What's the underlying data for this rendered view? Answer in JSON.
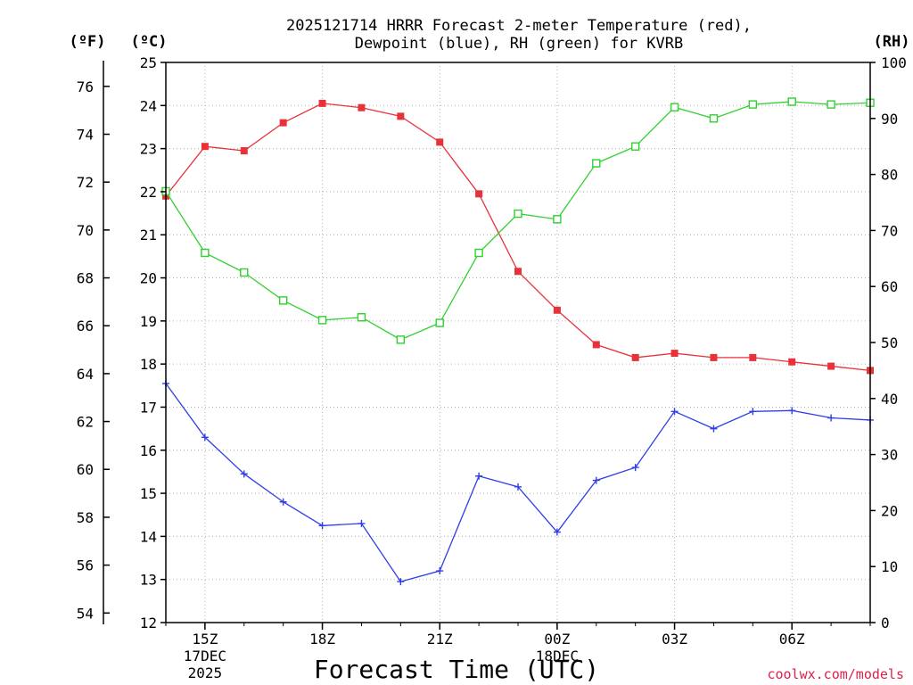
{
  "chart_data": {
    "type": "line",
    "title_line1": "2025121714 HRRR Forecast 2-meter Temperature (red),",
    "title_line2": "Dewpoint (blue), RH (green) for KVRB",
    "xlabel": "Forecast Time (UTC)",
    "credit": "coolwx.com/models",
    "left_c_unit": "(ºC)",
    "left_f_unit": "(ºF)",
    "right_unit": "(RH)",
    "x_hours": [
      14,
      15,
      16,
      17,
      18,
      19,
      20,
      21,
      22,
      23,
      24,
      25,
      26,
      27,
      28,
      29,
      30,
      31,
      32
    ],
    "x_tick_labels": [
      {
        "hour": 15,
        "line1": "15Z",
        "line2": "17DEC",
        "line3": "2025"
      },
      {
        "hour": 18,
        "line1": "18Z",
        "line2": "",
        "line3": ""
      },
      {
        "hour": 21,
        "line1": "21Z",
        "line2": "",
        "line3": ""
      },
      {
        "hour": 24,
        "line1": "00Z",
        "line2": "18DEC",
        "line3": ""
      },
      {
        "hour": 27,
        "line1": "03Z",
        "line2": "",
        "line3": ""
      },
      {
        "hour": 30,
        "line1": "06Z",
        "line2": "",
        "line3": ""
      }
    ],
    "xlim": [
      14,
      32
    ],
    "celsius_axis": {
      "ylim": [
        12,
        25
      ],
      "ticks": [
        "12",
        "13",
        "14",
        "15",
        "16",
        "17",
        "18",
        "19",
        "20",
        "21",
        "22",
        "23",
        "24",
        "25"
      ]
    },
    "fahrenheit_axis": {
      "ticks": [
        "54",
        "56",
        "58",
        "60",
        "62",
        "64",
        "66",
        "68",
        "70",
        "72",
        "74",
        "76"
      ]
    },
    "rh_axis": {
      "ylim": [
        0,
        100
      ],
      "ticks": [
        "0",
        "10",
        "20",
        "30",
        "40",
        "50",
        "60",
        "70",
        "80",
        "90",
        "100"
      ]
    },
    "series": [
      {
        "name": "Temperature",
        "color": "#e8323a",
        "marker": "filled-square",
        "axis": "celsius",
        "values": [
          21.9,
          23.05,
          22.95,
          23.6,
          24.05,
          23.95,
          23.75,
          23.15,
          21.95,
          20.15,
          19.25,
          18.45,
          18.15,
          18.25,
          18.15,
          18.15,
          18.05,
          17.95,
          17.85
        ]
      },
      {
        "name": "Dewpoint",
        "color": "#2f3ee8",
        "marker": "plus",
        "axis": "celsius",
        "values": [
          17.55,
          16.3,
          15.45,
          14.8,
          14.25,
          14.3,
          12.95,
          13.2,
          15.4,
          15.15,
          14.1,
          15.3,
          15.6,
          16.9,
          16.5,
          16.9,
          16.92,
          16.75,
          16.7
        ]
      },
      {
        "name": "RH",
        "color": "#30d030",
        "marker": "open-square",
        "axis": "rh",
        "values": [
          77,
          66,
          62.5,
          57.5,
          54,
          54.5,
          50.5,
          53.5,
          66,
          73,
          72,
          82,
          85,
          92,
          90,
          92.5,
          93,
          92.5,
          92.8
        ]
      }
    ]
  }
}
